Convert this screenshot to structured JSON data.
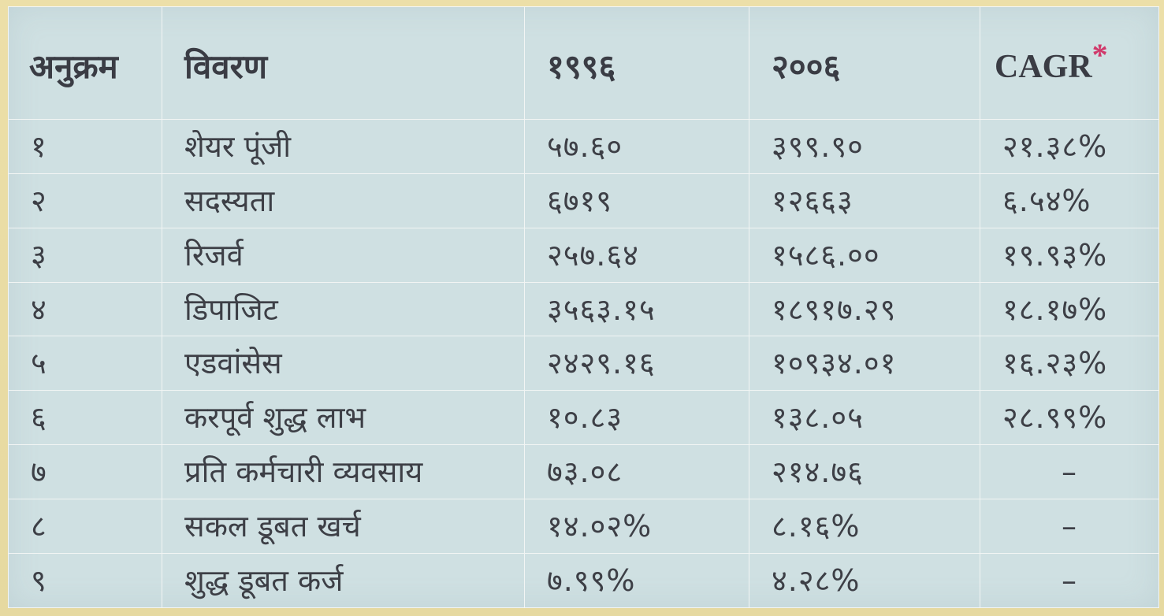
{
  "header": {
    "col_sn": "अनुक्रम",
    "col_desc": "विवरण",
    "col_1996": "१९९६",
    "col_2006": "२००६",
    "col_cagr": "CAGR",
    "cagr_mark": "*"
  },
  "rows": [
    {
      "sn": "१",
      "desc": "शेयर पूंजी",
      "y1996": "५७.६०",
      "y2006": "३९९.९०",
      "cagr": "२१.३८%"
    },
    {
      "sn": "२",
      "desc": "सदस्यता",
      "y1996": "६७१९",
      "y2006": "१२६६३",
      "cagr": "६.५४%"
    },
    {
      "sn": "३",
      "desc": "रिजर्व",
      "y1996": "२५७.६४",
      "y2006": "१५८६.००",
      "cagr": "१९.९३%"
    },
    {
      "sn": "४",
      "desc": "डिपाजिट",
      "y1996": "३५६३.१५",
      "y2006": "१८९१७.२९",
      "cagr": "१८.१७%"
    },
    {
      "sn": "५",
      "desc": "एडवांसेस",
      "y1996": "२४२९.१६",
      "y2006": "१०९३४.०१",
      "cagr": "१६.२३%"
    },
    {
      "sn": "६",
      "desc": "करपूर्व शुद्ध लाभ",
      "y1996": "१०.८३",
      "y2006": "१३८.०५",
      "cagr": "२८.९९%"
    },
    {
      "sn": "७",
      "desc": "प्रति कर्मचारी व्यवसाय",
      "y1996": "७३.०८",
      "y2006": "२१४.७६",
      "cagr": "–"
    },
    {
      "sn": "८",
      "desc": "सकल डूबत खर्च",
      "y1996": "१४.०२%",
      "y2006": "८.१६%",
      "cagr": "–"
    },
    {
      "sn": "९",
      "desc": "शुद्ध डूबत कर्ज",
      "y1996": "७.९९%",
      "y2006": "४.२८%",
      "cagr": "–"
    }
  ]
}
